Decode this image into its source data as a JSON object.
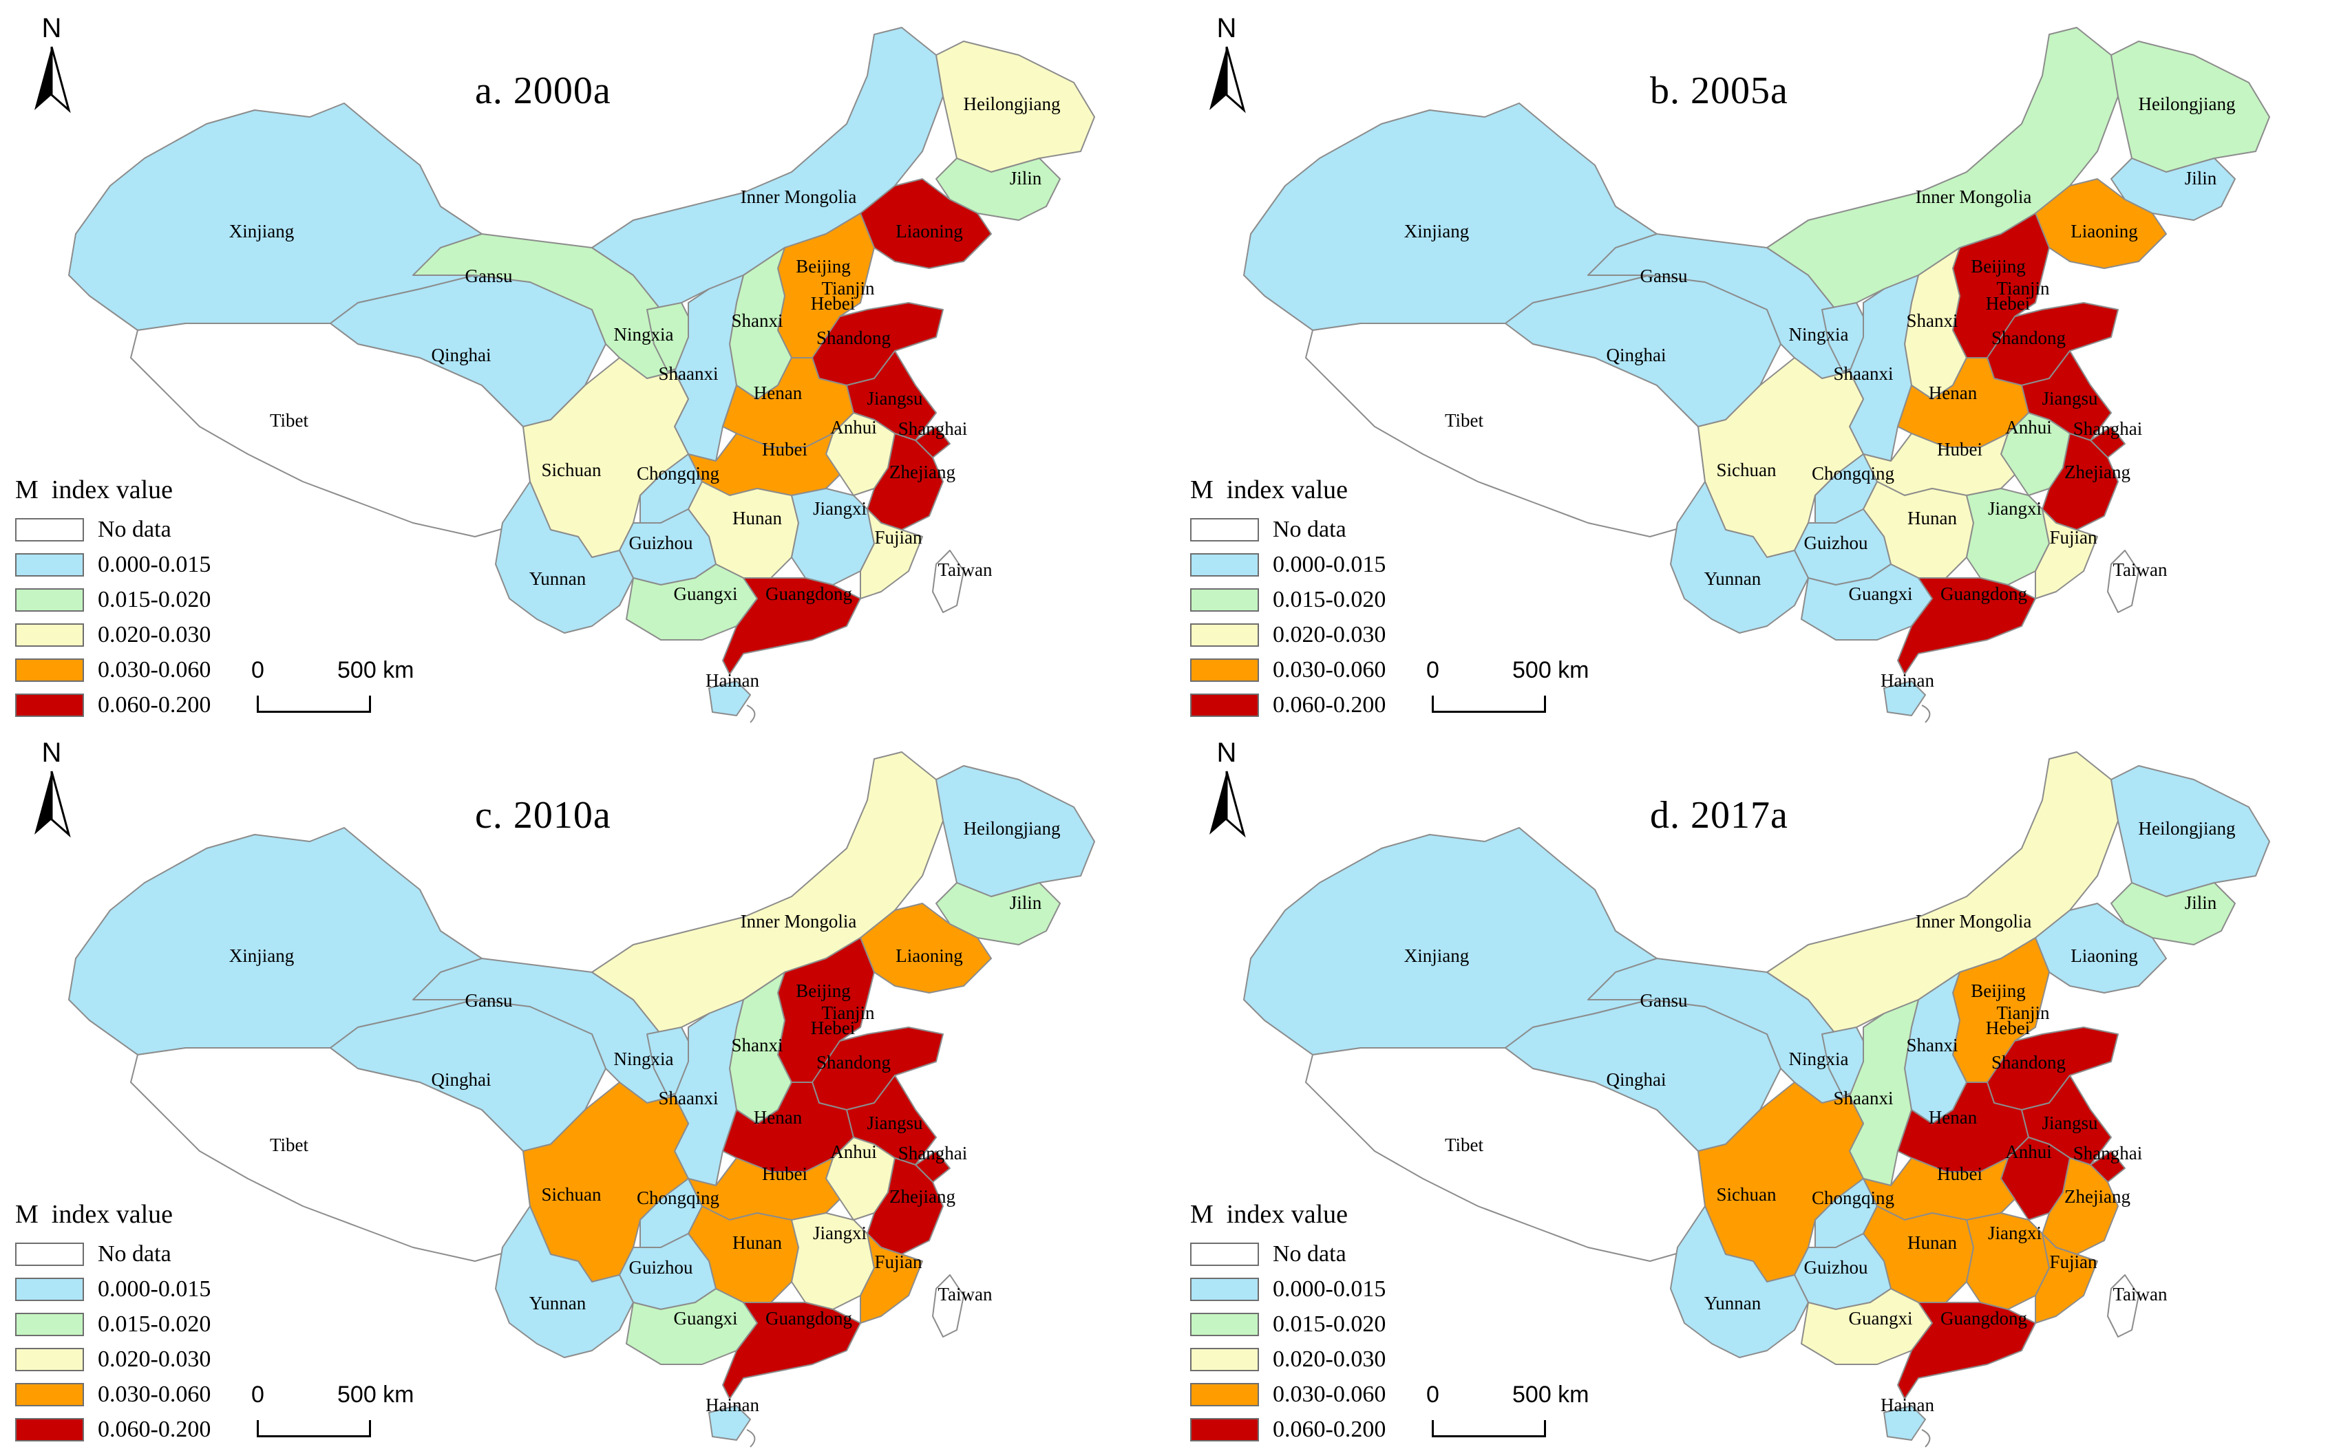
{
  "legend": {
    "title": "M  index value",
    "classes": [
      {
        "label": "No data",
        "color": "#ffffff"
      },
      {
        "label": "0.000-0.015",
        "color": "#aee5f7"
      },
      {
        "label": "0.015-0.020",
        "color": "#c5f5c2"
      },
      {
        "label": "0.020-0.030",
        "color": "#fafac4"
      },
      {
        "label": "0.030-0.060",
        "color": "#ff9d00"
      },
      {
        "label": "0.060-0.200",
        "color": "#c80000"
      }
    ]
  },
  "north_label": "N",
  "scale": {
    "start": "0",
    "end": "500 km"
  },
  "province_names": [
    "Xinjiang",
    "Tibet",
    "Qinghai",
    "Gansu",
    "Inner Mongolia",
    "Heilongjiang",
    "Jilin",
    "Liaoning",
    "Beijing",
    "Tianjin",
    "Hebei",
    "Shanxi",
    "Ningxia",
    "Shaanxi",
    "Shandong",
    "Henan",
    "Jiangsu",
    "Anhui",
    "Shanghai",
    "Hubei",
    "Sichuan",
    "Chongqing",
    "Zhejiang",
    "Hunan",
    "Jiangxi",
    "Fujian",
    "Guizhou",
    "Yunnan",
    "Guangxi",
    "Guangdong",
    "Taiwan",
    "Hainan"
  ],
  "panels": [
    {
      "title": "a. 2000a",
      "classes": {
        "Xinjiang": 1,
        "Tibet": 0,
        "Qinghai": 1,
        "Gansu": 2,
        "Inner Mongolia": 1,
        "Heilongjiang": 3,
        "Jilin": 2,
        "Liaoning": 5,
        "Beijing": 4,
        "Tianjin": 0,
        "Hebei": 4,
        "Shanxi": 2,
        "Ningxia": 2,
        "Shaanxi": 1,
        "Shandong": 5,
        "Henan": 4,
        "Jiangsu": 5,
        "Anhui": 3,
        "Shanghai": 5,
        "Hubei": 4,
        "Sichuan": 3,
        "Chongqing": 1,
        "Zhejiang": 5,
        "Hunan": 3,
        "Jiangxi": 1,
        "Fujian": 3,
        "Guizhou": 1,
        "Yunnan": 1,
        "Guangxi": 2,
        "Guangdong": 5,
        "Taiwan": 0,
        "Hainan": 1
      }
    },
    {
      "title": "b. 2005a",
      "classes": {
        "Xinjiang": 1,
        "Tibet": 0,
        "Qinghai": 1,
        "Gansu": 1,
        "Inner Mongolia": 2,
        "Heilongjiang": 2,
        "Jilin": 1,
        "Liaoning": 4,
        "Beijing": 5,
        "Tianjin": 0,
        "Hebei": 5,
        "Shanxi": 3,
        "Ningxia": 1,
        "Shaanxi": 1,
        "Shandong": 5,
        "Henan": 4,
        "Jiangsu": 5,
        "Anhui": 2,
        "Shanghai": 5,
        "Hubei": 3,
        "Sichuan": 3,
        "Chongqing": 1,
        "Zhejiang": 5,
        "Hunan": 3,
        "Jiangxi": 2,
        "Fujian": 3,
        "Guizhou": 1,
        "Yunnan": 1,
        "Guangxi": 1,
        "Guangdong": 5,
        "Taiwan": 0,
        "Hainan": 1
      }
    },
    {
      "title": "c. 2010a",
      "classes": {
        "Xinjiang": 1,
        "Tibet": 0,
        "Qinghai": 1,
        "Gansu": 1,
        "Inner Mongolia": 3,
        "Heilongjiang": 1,
        "Jilin": 2,
        "Liaoning": 4,
        "Beijing": 5,
        "Tianjin": 0,
        "Hebei": 5,
        "Shanxi": 2,
        "Ningxia": 1,
        "Shaanxi": 1,
        "Shandong": 5,
        "Henan": 5,
        "Jiangsu": 5,
        "Anhui": 3,
        "Shanghai": 5,
        "Hubei": 4,
        "Sichuan": 4,
        "Chongqing": 1,
        "Zhejiang": 5,
        "Hunan": 4,
        "Jiangxi": 3,
        "Fujian": 4,
        "Guizhou": 1,
        "Yunnan": 1,
        "Guangxi": 2,
        "Guangdong": 5,
        "Taiwan": 0,
        "Hainan": 1
      }
    },
    {
      "title": "d. 2017a",
      "classes": {
        "Xinjiang": 1,
        "Tibet": 0,
        "Qinghai": 1,
        "Gansu": 1,
        "Inner Mongolia": 3,
        "Heilongjiang": 1,
        "Jilin": 2,
        "Liaoning": 1,
        "Beijing": 4,
        "Tianjin": 0,
        "Hebei": 4,
        "Shanxi": 1,
        "Ningxia": 1,
        "Shaanxi": 2,
        "Shandong": 5,
        "Henan": 5,
        "Jiangsu": 5,
        "Anhui": 5,
        "Shanghai": 5,
        "Hubei": 4,
        "Sichuan": 4,
        "Chongqing": 1,
        "Zhejiang": 4,
        "Hunan": 4,
        "Jiangxi": 4,
        "Fujian": 4,
        "Guizhou": 1,
        "Yunnan": 1,
        "Guangxi": 3,
        "Guangdong": 5,
        "Taiwan": 0,
        "Hainan": 1
      }
    }
  ]
}
